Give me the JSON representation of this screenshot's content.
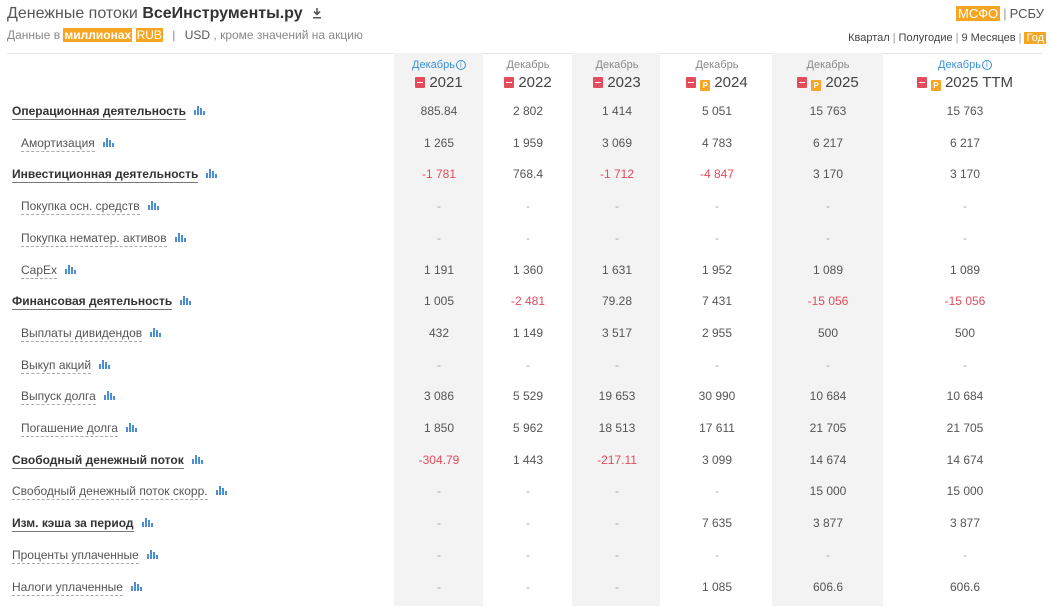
{
  "header": {
    "title_prefix": "Денежные потоки",
    "company": "ВсеИнструменты.ру",
    "data_in_prefix": "Данные в",
    "units_highlight": "миллионах",
    "currency_rub": "RUB",
    "separator": "|",
    "currency_usd": "USD",
    "suffix": ", кроме значений на акцию",
    "standards": {
      "msfo": "МСФО",
      "rsbu": "РСБУ",
      "sep": "|"
    },
    "periods": {
      "kvartal": "Квартал",
      "polugodie": "Полугодие",
      "nine_months": "9 Месяцев",
      "god": "Год",
      "sep": "|"
    }
  },
  "columns": [
    {
      "month": "Декабрь",
      "year": "2021",
      "info": true,
      "pdf": true,
      "ppt": false
    },
    {
      "month": "Декабрь",
      "year": "2022",
      "info": false,
      "pdf": true,
      "ppt": false
    },
    {
      "month": "Декабрь",
      "year": "2023",
      "info": false,
      "pdf": true,
      "ppt": false
    },
    {
      "month": "Декабрь",
      "year": "2024",
      "info": false,
      "pdf": true,
      "ppt": true
    },
    {
      "month": "Декабрь",
      "year": "2025",
      "info": false,
      "pdf": true,
      "ppt": true
    },
    {
      "month": "Декабрь",
      "year": "2025 TTM",
      "info": true,
      "pdf": true,
      "ppt": true
    }
  ],
  "rows": [
    {
      "label": "Операционная деятельность",
      "type": "main",
      "values": [
        "885.84",
        "2 802",
        "1 414",
        "5 051",
        "15 763",
        "15 763"
      ]
    },
    {
      "label": "Амортизация",
      "type": "sub",
      "values": [
        "1 265",
        "1 959",
        "3 069",
        "4 783",
        "6 217",
        "6 217"
      ]
    },
    {
      "label": "Инвестиционная деятельность",
      "type": "main",
      "values": [
        "-1 781",
        "768.4",
        "-1 712",
        "-4 847",
        "3 170",
        "3 170"
      ]
    },
    {
      "label": "Покупка осн. средств",
      "type": "sub",
      "values": [
        "-",
        "-",
        "-",
        "-",
        "-",
        "-"
      ]
    },
    {
      "label": "Покупка нематер. активов",
      "type": "sub",
      "values": [
        "-",
        "-",
        "-",
        "-",
        "-",
        "-"
      ]
    },
    {
      "label": "CapEx",
      "type": "sub",
      "values": [
        "1 191",
        "1 360",
        "1 631",
        "1 952",
        "1 089",
        "1 089"
      ]
    },
    {
      "label": "Финансовая деятельность",
      "type": "main",
      "values": [
        "1 005",
        "-2 481",
        "79.28",
        "7 431",
        "-15 056",
        "-15 056"
      ]
    },
    {
      "label": "Выплаты дивидендов",
      "type": "sub",
      "values": [
        "432",
        "1 149",
        "3 517",
        "2 955",
        "500",
        "500"
      ]
    },
    {
      "label": "Выкуп акций",
      "type": "sub",
      "values": [
        "-",
        "-",
        "-",
        "-",
        "-",
        "-"
      ]
    },
    {
      "label": "Выпуск долга",
      "type": "sub",
      "values": [
        "3 086",
        "5 529",
        "19 653",
        "30 990",
        "10 684",
        "10 684"
      ]
    },
    {
      "label": "Погашение долга",
      "type": "sub",
      "values": [
        "1 850",
        "5 962",
        "18 513",
        "17 611",
        "21 705",
        "21 705"
      ]
    },
    {
      "label": "Свободный денежный поток",
      "type": "main",
      "values": [
        "-304.79",
        "1 443",
        "-217.11",
        "3 099",
        "14 674",
        "14 674"
      ]
    },
    {
      "label": "Свободный денежный поток скорр.",
      "type": "flat",
      "values": [
        "-",
        "-",
        "-",
        "-",
        "15 000",
        "15 000"
      ]
    },
    {
      "label": "Изм. кэша за период",
      "type": "main",
      "values": [
        "-",
        "-",
        "-",
        "7 635",
        "3 877",
        "3 877"
      ]
    },
    {
      "label": "Проценты уплаченные",
      "type": "flat",
      "values": [
        "-",
        "-",
        "-",
        "-",
        "-",
        "-"
      ]
    },
    {
      "label": "Налоги уплаченные",
      "type": "flat",
      "values": [
        "-",
        "-",
        "-",
        "1 085",
        "606.6",
        "606.6"
      ]
    }
  ],
  "colors": {
    "accent": "#f6a623",
    "negative": "#e24c5b",
    "link_blue": "#3a8fd9",
    "column_shade": "#f3f3f3"
  },
  "icons": {
    "download": "download-icon",
    "chart": "bar-chart-icon",
    "pdf": "pdf-icon",
    "presentation": "presentation-icon",
    "info": "info-icon"
  }
}
